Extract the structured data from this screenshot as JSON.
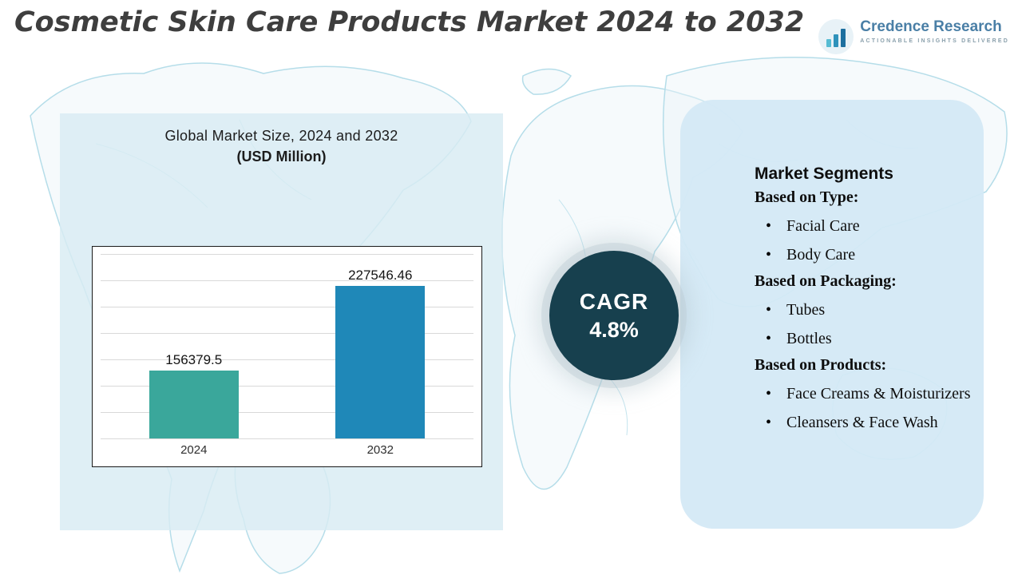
{
  "header": {
    "title": "Cosmetic Skin Care Products Market 2024 to 2032",
    "logo": {
      "brand": "Credence Research",
      "tagline": "Actionable Insights Delivered"
    }
  },
  "chart_panel": {
    "title_line1": "Global Market Size, 2024 and 2032",
    "title_line2": "(USD Million)"
  },
  "chart_data": {
    "type": "bar",
    "title": "Global Market Size, 2024 and 2032 (USD Million)",
    "categories": [
      "2024",
      "2032"
    ],
    "values": [
      156379.5,
      227546.46
    ],
    "value_labels": [
      "156379.5",
      "227546.46"
    ],
    "bar_colors": [
      "#3aa79b",
      "#1f88b8"
    ],
    "xlabel": "",
    "ylabel": "",
    "ylim": [
      100000,
      260000
    ],
    "grid": true,
    "legend": false
  },
  "cagr": {
    "label": "CAGR",
    "value": "4.8%",
    "circle_color": "#17404e"
  },
  "segments": {
    "title": "Market Segments",
    "groups": [
      {
        "heading": "Based on Type:",
        "items": [
          "Facial Care",
          "Body Care"
        ]
      },
      {
        "heading": "Based on Packaging:",
        "items": [
          "Tubes",
          "Bottles"
        ]
      },
      {
        "heading": "Based on Products:",
        "items": [
          "Face Creams & Moisturizers",
          "Cleansers & Face Wash"
        ]
      }
    ]
  },
  "colors": {
    "accent_teal": "#3aa79b",
    "accent_blue": "#1f88b8",
    "panel_blue": "#d8ecf3",
    "map_stroke": "#b5dde9",
    "title_gray": "#3e3e3e"
  }
}
